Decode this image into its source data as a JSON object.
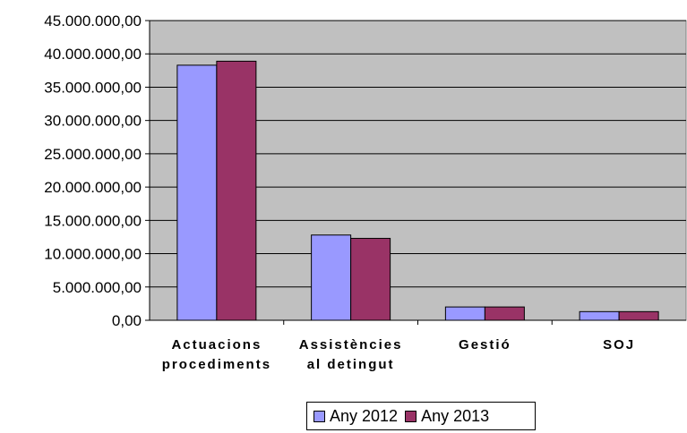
{
  "chart_data": {
    "type": "bar",
    "categories": [
      [
        "Actuacions",
        "procediments"
      ],
      [
        "Assistències",
        "al detingut"
      ],
      [
        "Gestió"
      ],
      [
        "SOJ"
      ]
    ],
    "series": [
      {
        "name": "Any 2012",
        "color": "#9999ff",
        "values": [
          38300000,
          12800000,
          2000000,
          1300000
        ]
      },
      {
        "name": "Any 2013",
        "color": "#993366",
        "values": [
          38900000,
          12300000,
          2000000,
          1300000
        ]
      }
    ],
    "yticks": [
      "0,00",
      "5.000.000,00",
      "10.000.000,00",
      "15.000.000,00",
      "20.000.000,00",
      "25.000.000,00",
      "30.000.000,00",
      "35.000.000,00",
      "40.000.000,00",
      "45.000.000,00"
    ],
    "ylim": [
      0,
      45000000
    ],
    "plot_background": "#c0c0c0",
    "grid": true,
    "legend_position": "bottom"
  }
}
